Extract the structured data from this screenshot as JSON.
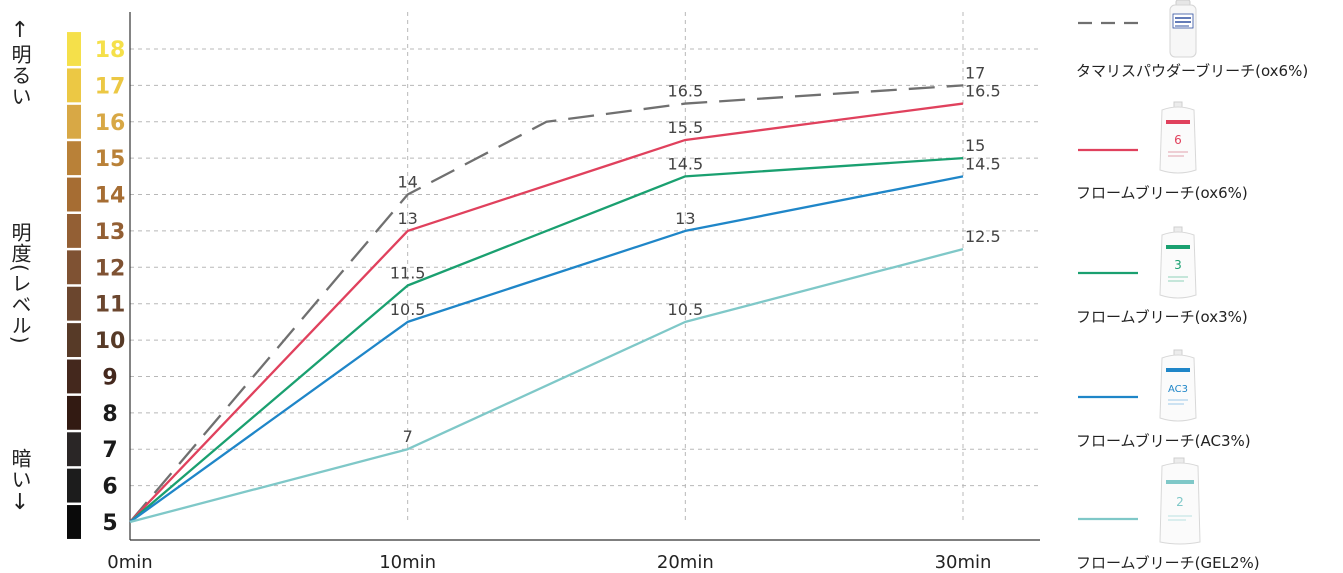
{
  "side_labels": {
    "top": "明るい",
    "middle": "明度(レベル)",
    "bottom": "暗い"
  },
  "chart_data": {
    "type": "line",
    "x": [
      "0min",
      "10min",
      "20min",
      "30min"
    ],
    "x_values": [
      0,
      10,
      20,
      30
    ],
    "ylim": [
      5,
      18
    ],
    "y_ticks": [
      5,
      6,
      7,
      8,
      9,
      10,
      11,
      12,
      13,
      14,
      15,
      16,
      17,
      18
    ],
    "level_colors": {
      "18": "#f5e04a",
      "17": "#ecc844",
      "16": "#d8a845",
      "15": "#b98138",
      "14": "#a66d33",
      "13": "#935f34",
      "12": "#7f5233",
      "11": "#6b462e",
      "10": "#573a27",
      "9": "#44281d",
      "8": "#321a12",
      "7": "#2a2626",
      "6": "#1c1c1c",
      "5": "#0a0a0a"
    },
    "grid": true,
    "series": [
      {
        "name": "タマリスパウダーブリーチ(ox6%)",
        "color": "#707070",
        "dashed": true,
        "points": [
          [
            0,
            5
          ],
          [
            10,
            14
          ],
          [
            15,
            16
          ],
          [
            20,
            16.5
          ],
          [
            30,
            17
          ]
        ],
        "labels": [
          [
            10,
            14,
            "14"
          ],
          [
            20,
            16.5,
            "16.5"
          ],
          [
            30,
            17,
            "17"
          ]
        ]
      },
      {
        "name": "フロームブリーチ(ox6%)",
        "color": "#e0415d",
        "dashed": false,
        "points": [
          [
            0,
            5
          ],
          [
            10,
            13
          ],
          [
            20,
            15.5
          ],
          [
            30,
            16.5
          ]
        ],
        "labels": [
          [
            10,
            13,
            "13"
          ],
          [
            20,
            15.5,
            "15.5"
          ],
          [
            30,
            16.5,
            "16.5"
          ]
        ]
      },
      {
        "name": "フロームブリーチ(ox3%)",
        "color": "#1aa070",
        "dashed": false,
        "points": [
          [
            0,
            5
          ],
          [
            10,
            11.5
          ],
          [
            20,
            14.5
          ],
          [
            30,
            15
          ]
        ],
        "labels": [
          [
            10,
            11.5,
            "11.5"
          ],
          [
            20,
            14.5,
            "14.5"
          ],
          [
            30,
            15,
            "15"
          ]
        ]
      },
      {
        "name": "フロームブリーチ(AC3%)",
        "color": "#1f86c8",
        "dashed": false,
        "points": [
          [
            0,
            5
          ],
          [
            10,
            10.5
          ],
          [
            20,
            13
          ],
          [
            30,
            14.5
          ]
        ],
        "labels": [
          [
            10,
            10.5,
            "10.5"
          ],
          [
            20,
            13,
            "13"
          ],
          [
            30,
            14.5,
            "14.5"
          ]
        ]
      },
      {
        "name": "フロームブリーチ(GEL2%)",
        "color": "#7fc8c8",
        "dashed": false,
        "points": [
          [
            0,
            5
          ],
          [
            10,
            7
          ],
          [
            20,
            10.5
          ],
          [
            30,
            12.5
          ]
        ],
        "labels": [
          [
            10,
            7,
            "7"
          ],
          [
            20,
            10.5,
            "10.5"
          ],
          [
            30,
            12.5,
            "12.5"
          ]
        ]
      }
    ]
  },
  "legend": {
    "items": [
      {
        "label": "タマリスパウダーブリーチ(ox6%)",
        "icon": "powder-bottle-icon",
        "accent": "#3050a0"
      },
      {
        "label": "フロームブリーチ(ox6%)",
        "icon": "pouch-icon",
        "accent": "#e0415d"
      },
      {
        "label": "フロームブリーチ(ox3%)",
        "icon": "pouch-icon",
        "accent": "#1aa070"
      },
      {
        "label": "フロームブリーチ(AC3%)",
        "icon": "pouch-icon",
        "accent": "#1f86c8"
      },
      {
        "label": "フロームブリーチ(GEL2%)",
        "icon": "pouch-icon",
        "accent": "#7fc8c8"
      }
    ]
  }
}
